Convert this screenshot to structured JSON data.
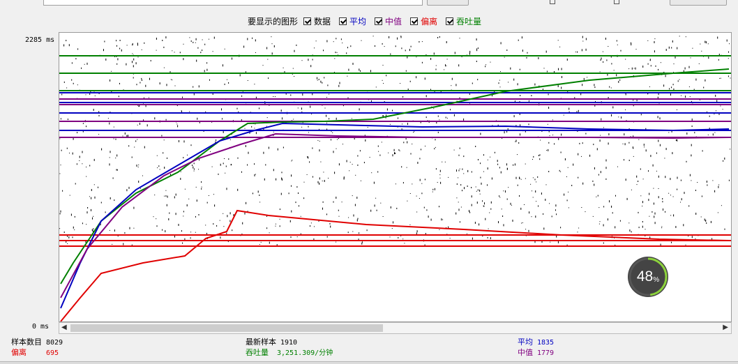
{
  "legend": {
    "title": "要显示的图形",
    "items": [
      {
        "label": "数据",
        "color": "#000000",
        "checked": true
      },
      {
        "label": "平均",
        "color": "#0000c0",
        "checked": true
      },
      {
        "label": "中值",
        "color": "#800080",
        "checked": true
      },
      {
        "label": "偏离",
        "color": "#e00000",
        "checked": true
      },
      {
        "label": "吞吐量",
        "color": "#008000",
        "checked": true
      }
    ]
  },
  "axis": {
    "y_max_label": "2285 ms",
    "y_min_label": "0 ms"
  },
  "gauge": {
    "value": "48",
    "unit": "%",
    "progress": 0.48
  },
  "stats": {
    "sample_count_label": "样本数目",
    "sample_count": "8029",
    "latest_sample_label": "最新样本",
    "latest_sample": "1910",
    "average_label": "平均",
    "average": "1835",
    "deviation_label": "偏离",
    "deviation": "695",
    "throughput_label": "吞吐量",
    "throughput": "3,251.309/分钟",
    "median_label": "中值",
    "median": "1779"
  },
  "chart_data": {
    "type": "line",
    "ylim": [
      0,
      2285
    ],
    "y_unit": "ms",
    "series": [
      {
        "name": "数据",
        "color": "#000000",
        "style": "scatter",
        "count": 8029
      },
      {
        "name": "平均",
        "color": "#0000c0",
        "final": 1835
      },
      {
        "name": "中值",
        "color": "#800080",
        "final": 1779
      },
      {
        "name": "偏离",
        "color": "#e00000",
        "final": 695
      },
      {
        "name": "吞吐量",
        "color": "#008000"
      }
    ]
  }
}
